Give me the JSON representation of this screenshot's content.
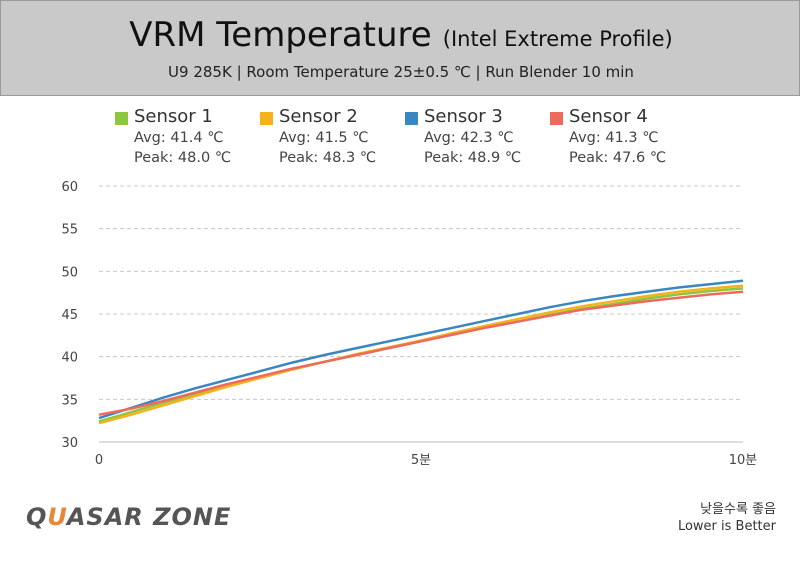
{
  "header": {
    "title": "VRM Temperature",
    "title_suffix": "(Intel Extreme Profile)",
    "subtitle": "U9 285K  |  Room Temperature 25±0.5 ℃  |  Run Blender 10 min"
  },
  "footer": {
    "logo_part1": "Q",
    "logo_accent": "U",
    "logo_part2": "ASAR ZONE",
    "note_ko": "낮을수록 좋음",
    "note_en": "Lower is Better"
  },
  "chart_data": {
    "type": "line",
    "title": "VRM Temperature",
    "xlabel": "",
    "ylabel": "",
    "x_ticks": [
      {
        "x": 0,
        "label": "0"
      },
      {
        "x": 5,
        "label": "5분"
      },
      {
        "x": 10,
        "label": "10분"
      }
    ],
    "y_ticks": [
      30,
      35,
      40,
      45,
      50,
      55,
      60
    ],
    "xlim": [
      0,
      10
    ],
    "ylim": [
      30,
      60
    ],
    "grid": "horizontal dashed",
    "legend_position": "top",
    "x": [
      0,
      0.5,
      1,
      1.5,
      2,
      2.5,
      3,
      3.5,
      4,
      4.5,
      5,
      5.5,
      6,
      6.5,
      7,
      7.5,
      8,
      8.5,
      9,
      9.5,
      10
    ],
    "series": [
      {
        "name": "Sensor 1",
        "color": "#8dc63f",
        "avg": "Avg: 41.4 ℃",
        "peak": "Peak: 48.0 ℃",
        "values": [
          32.4,
          33.5,
          34.6,
          35.6,
          36.6,
          37.6,
          38.5,
          39.4,
          40.2,
          41.0,
          41.8,
          42.6,
          43.4,
          44.1,
          44.9,
          45.6,
          46.2,
          46.8,
          47.3,
          47.7,
          48.0
        ]
      },
      {
        "name": "Sensor 2",
        "color": "#f5b21c",
        "avg": "Avg: 41.5 ℃",
        "peak": "Peak: 48.3 ℃",
        "values": [
          32.2,
          33.2,
          34.3,
          35.4,
          36.5,
          37.5,
          38.5,
          39.4,
          40.3,
          41.1,
          41.9,
          42.8,
          43.6,
          44.4,
          45.2,
          45.9,
          46.5,
          47.1,
          47.6,
          48.0,
          48.3
        ]
      },
      {
        "name": "Sensor 3",
        "color": "#3a86c0",
        "avg": "Avg: 42.3 ℃",
        "peak": "Peak: 48.9 ℃",
        "values": [
          32.8,
          34.0,
          35.2,
          36.3,
          37.3,
          38.3,
          39.3,
          40.2,
          41.0,
          41.8,
          42.6,
          43.4,
          44.2,
          45.0,
          45.8,
          46.5,
          47.1,
          47.6,
          48.1,
          48.5,
          48.9
        ]
      },
      {
        "name": "Sensor 4",
        "color": "#ef6a5e",
        "avg": "Avg: 41.3 ℃",
        "peak": "Peak: 47.6 ℃",
        "values": [
          33.2,
          33.9,
          34.8,
          35.8,
          36.8,
          37.7,
          38.6,
          39.4,
          40.2,
          41.0,
          41.8,
          42.6,
          43.4,
          44.1,
          44.8,
          45.5,
          46.0,
          46.5,
          46.9,
          47.3,
          47.6
        ]
      }
    ]
  }
}
